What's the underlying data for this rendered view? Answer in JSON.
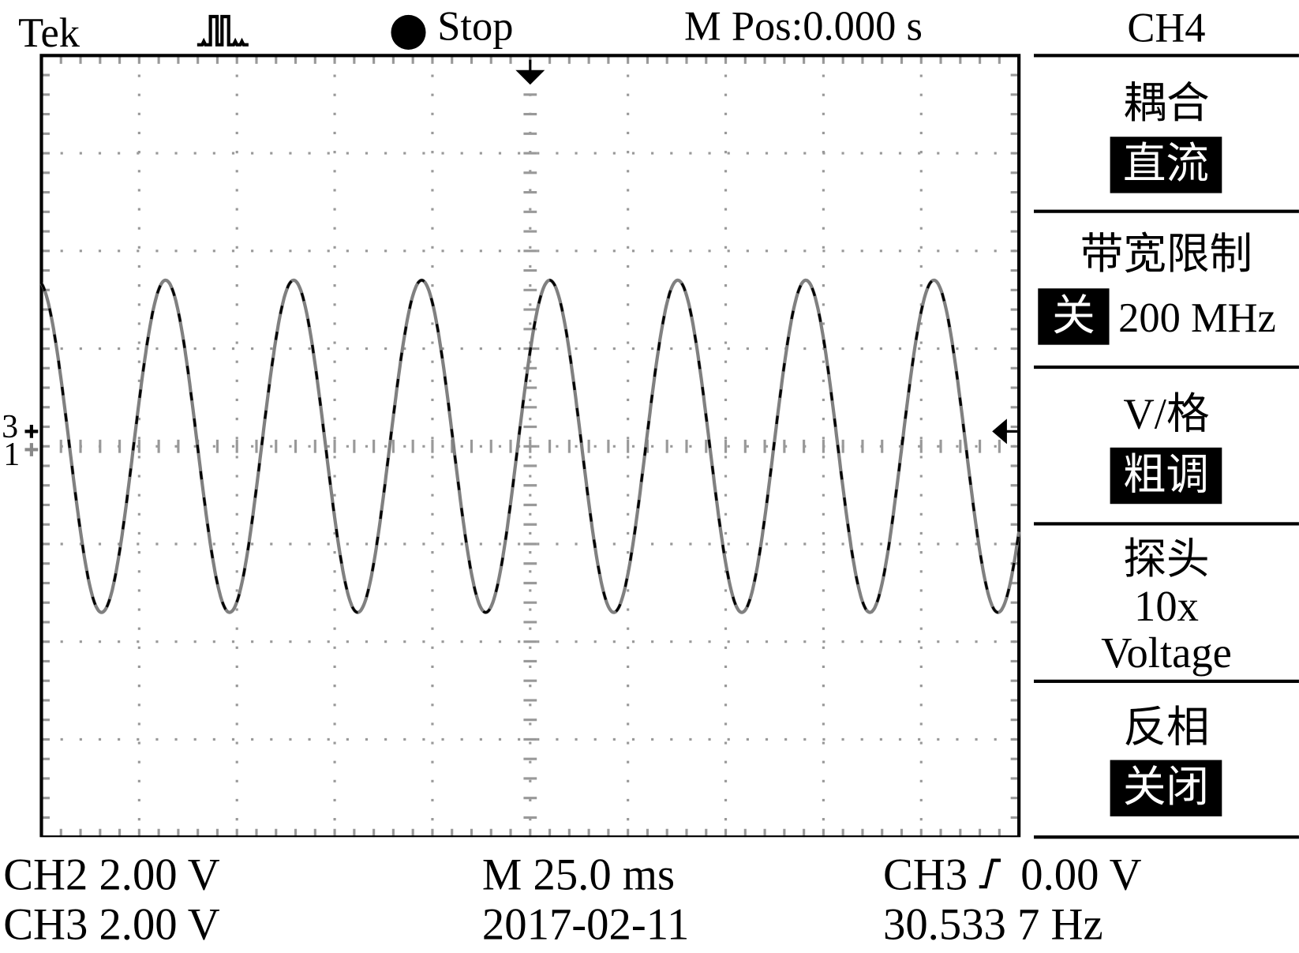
{
  "header": {
    "brand": "Tek",
    "trigger_icon": "pulse-waveform-icon",
    "run_status_icon": "filled-circle-icon",
    "run_status": "Stop",
    "position": "M Pos:0.000 s"
  },
  "menu": {
    "channel": "CH4",
    "items": [
      {
        "label": "耦合",
        "value": "直流"
      },
      {
        "label": "带宽限制",
        "value": "关",
        "extra": "200 MHz"
      },
      {
        "label": "V/格",
        "value": "粗调"
      },
      {
        "label": "探头",
        "line1": "10x",
        "line2": "Voltage"
      },
      {
        "label": "反相",
        "value": "关闭"
      }
    ]
  },
  "footer": {
    "ch2_scale": "CH2 2.00 V",
    "ch3_scale": "CH3 2.00 V",
    "timebase": "M 25.0 ms",
    "date": "2017-02-11",
    "trigger_source": "CH3",
    "trigger_slope_icon": "rising-edge-icon",
    "trigger_level": "0.00 V",
    "frequency": "30.533 7 Hz"
  },
  "markers": {
    "ch3": "3",
    "ch1": "1"
  },
  "chart_data": {
    "type": "line",
    "x_unit": "ms",
    "y_unit": "V",
    "xlim": [
      -125,
      125
    ],
    "ylim": [
      -8,
      8
    ],
    "grid": true,
    "divisions": {
      "x": 10,
      "y": 8
    },
    "series": [
      {
        "channel": "CH3",
        "color": "#808080",
        "style": "solid",
        "waveform": "sine",
        "frequency_hz": 30.5337,
        "amplitude_v": 3.4,
        "offset_v": 0.0,
        "peak_time_ms": 5.0
      },
      {
        "channel": "CH2",
        "color": "#000000",
        "style": "dashed",
        "waveform": "sine",
        "frequency_hz": 30.5337,
        "amplitude_v": 3.4,
        "offset_v": 0.0,
        "peak_time_ms": 5.0
      }
    ]
  }
}
